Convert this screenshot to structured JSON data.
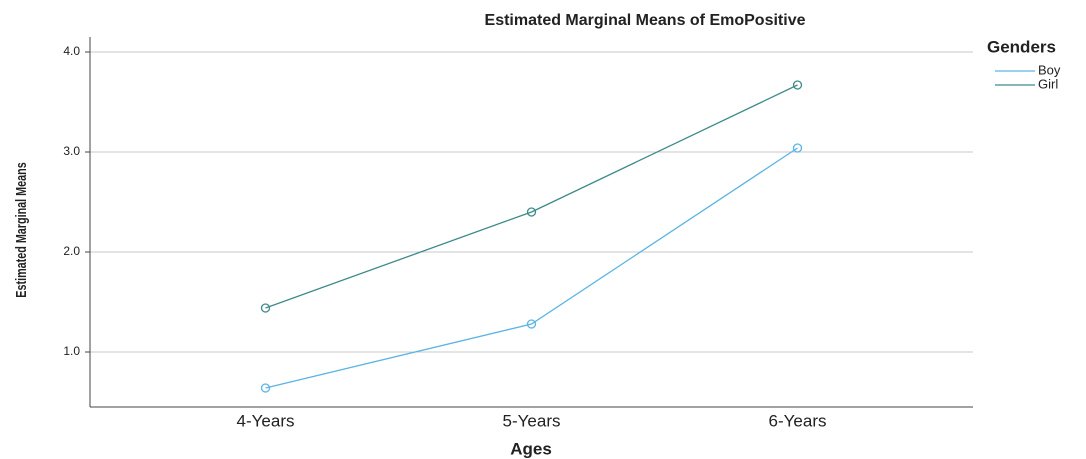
{
  "chart_data": {
    "type": "line",
    "title": "Estimated Marginal Means of EmoPositive",
    "x_label": "Ages",
    "y_label": "Estimated Marginal Means",
    "legend_title": "Genders",
    "categories": [
      "4-Years",
      "5-Years",
      "6-Years"
    ],
    "series": [
      {
        "name": "Boy",
        "color": "#5bb4e5",
        "values": [
          0.64,
          1.28,
          3.04
        ]
      },
      {
        "name": "Girl",
        "color": "#3d8a8a",
        "values": [
          1.44,
          2.4,
          3.67
        ]
      }
    ],
    "ylim": [
      0.45,
      4.15
    ],
    "yticks": [
      {
        "value": 1,
        "label": "1.0"
      },
      {
        "value": 2,
        "label": "2.0"
      },
      {
        "value": 3,
        "label": "3.0"
      },
      {
        "value": 4,
        "label": "4.0"
      }
    ],
    "grid": true,
    "legend": "right"
  }
}
